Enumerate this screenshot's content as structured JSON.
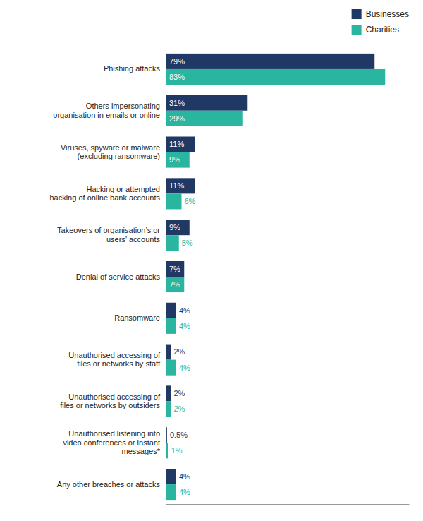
{
  "chart_data": {
    "type": "bar",
    "orientation": "horizontal",
    "categories": [
      "Phishing attacks",
      "Others impersonating\norganisation in emails or online",
      "Viruses, spyware or malware\n(excluding ransomware)",
      "Hacking or attempted\nhacking of online bank accounts",
      "Takeovers of organisation’s or\nusers’ accounts",
      "Denial of service attacks",
      "Ransomware",
      "Unauthorised accessing of\nfiles or networks by staff",
      "Unauthorised accessing of\nfiles or networks by outsiders",
      "Unauthorised listening into\nvideo conferences or instant\nmessages*",
      "Any other breaches or attacks"
    ],
    "series": [
      {
        "name": "Businesses",
        "color": "#1f3864",
        "values": [
          79,
          31,
          11,
          11,
          9,
          7,
          4,
          2,
          2,
          0.5,
          4
        ],
        "value_labels": [
          "79%",
          "31%",
          "11%",
          "11%",
          "9%",
          "7%",
          "4%",
          "2%",
          "2%",
          "0.5%",
          "4%"
        ]
      },
      {
        "name": "Charities",
        "color": "#2ab5a0",
        "values": [
          83,
          29,
          9,
          6,
          5,
          7,
          4,
          4,
          2,
          1,
          4
        ],
        "value_labels": [
          "83%",
          "29%",
          "9%",
          "6%",
          "5%",
          "7%",
          "4%",
          "4%",
          "2%",
          "1%",
          "4%"
        ]
      }
    ],
    "xlim": [
      0,
      92
    ],
    "grid": false,
    "legend": "upper right",
    "data_labels": true,
    "tick_labels": "y"
  }
}
